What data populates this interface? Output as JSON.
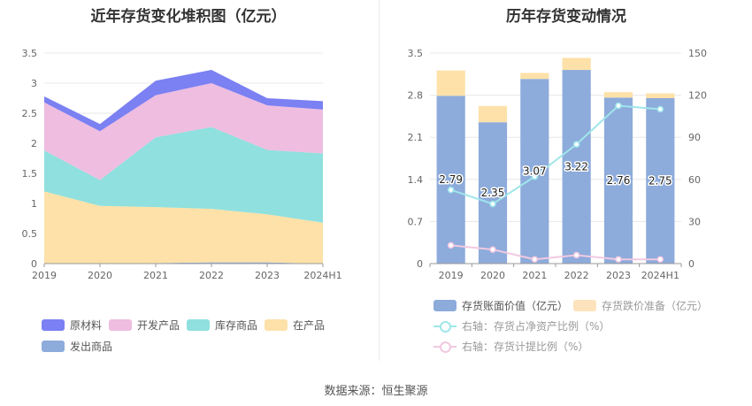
{
  "left": {
    "title": "近年存货变化堆积图（亿元）",
    "legend": [
      {
        "name": "原材料",
        "color": "#7b80f2"
      },
      {
        "name": "开发产品",
        "color": "#eebde0"
      },
      {
        "name": "库存商品",
        "color": "#8fe0de"
      },
      {
        "name": "在产品",
        "color": "#fde1a8"
      },
      {
        "name": "发出商品",
        "color": "#8dabdb"
      }
    ]
  },
  "right": {
    "title": "历年存货变动情况",
    "legend": [
      {
        "name": "存货账面价值（亿元）",
        "color": "#8dabdb"
      },
      {
        "name": "存货跌价准备（亿元）",
        "color": "#fde3bb"
      },
      {
        "name": "右轴：存货占净资产比例（%）",
        "color": "#9fe6ea"
      },
      {
        "name": "右轴：存货计提比例（%）",
        "color": "#f1c9e2"
      }
    ]
  },
  "source": "数据来源：恒生聚源",
  "chart_data": [
    {
      "type": "area",
      "stacked": true,
      "title": "近年存货变化堆积图（亿元）",
      "categories": [
        "2019",
        "2020",
        "2021",
        "2022",
        "2023",
        "2024H1"
      ],
      "ylim": [
        0,
        3.5
      ],
      "yticks": [
        "0",
        "0.5",
        "1",
        "1.5",
        "2",
        "2.5",
        "3",
        "3.5"
      ],
      "grid": true,
      "legend_position": "bottom",
      "series": [
        {
          "name": "发出商品",
          "color": "#8dabdb",
          "values": [
            0.0,
            0.0,
            0.01,
            0.02,
            0.02,
            0.0
          ]
        },
        {
          "name": "在产品",
          "color": "#fde1a8",
          "values": [
            1.2,
            0.96,
            0.93,
            0.89,
            0.8,
            0.68
          ]
        },
        {
          "name": "库存商品",
          "color": "#8fe0de",
          "values": [
            0.68,
            0.43,
            1.16,
            1.36,
            1.07,
            1.15
          ]
        },
        {
          "name": "开发产品",
          "color": "#eebde0",
          "values": [
            0.8,
            0.81,
            0.7,
            0.73,
            0.74,
            0.73
          ]
        },
        {
          "name": "原材料",
          "color": "#7b80f2",
          "values": [
            0.1,
            0.12,
            0.24,
            0.22,
            0.12,
            0.14
          ]
        }
      ]
    },
    {
      "type": "bar",
      "stacked": true,
      "title": "历年存货变动情况",
      "categories": [
        "2019",
        "2020",
        "2021",
        "2022",
        "2023",
        "2024H1"
      ],
      "ylim": [
        0,
        3.5
      ],
      "yticks": [
        "0",
        "0.7",
        "1.4",
        "2.1",
        "2.8",
        "3.5"
      ],
      "y2lim": [
        0,
        150
      ],
      "y2ticks": [
        "0",
        "30",
        "60",
        "90",
        "120",
        "150"
      ],
      "grid": true,
      "legend_position": "bottom",
      "series": [
        {
          "name": "存货账面价值（亿元）",
          "type": "bar",
          "axis": "left",
          "color": "#8dabdb",
          "values": [
            2.79,
            2.35,
            3.07,
            3.22,
            2.76,
            2.75
          ],
          "labels": [
            "2.79",
            "2.35",
            "3.07",
            "3.22",
            "2.76",
            "2.75"
          ]
        },
        {
          "name": "存货跌价准备（亿元）",
          "type": "bar",
          "axis": "left",
          "color": "#fde1a8",
          "values": [
            0.42,
            0.27,
            0.1,
            0.2,
            0.09,
            0.08
          ]
        },
        {
          "name": "右轴：存货占净资产比例（%）",
          "type": "line",
          "axis": "right",
          "color": "#9fe6ea",
          "values": [
            52.5,
            42.5,
            62.0,
            85.0,
            112.5,
            110.0
          ]
        },
        {
          "name": "右轴：存货计提比例（%）",
          "type": "line",
          "axis": "right",
          "color": "#f1c9e2",
          "values": [
            13.0,
            10.0,
            3.0,
            6.0,
            3.0,
            3.0
          ]
        }
      ]
    }
  ]
}
